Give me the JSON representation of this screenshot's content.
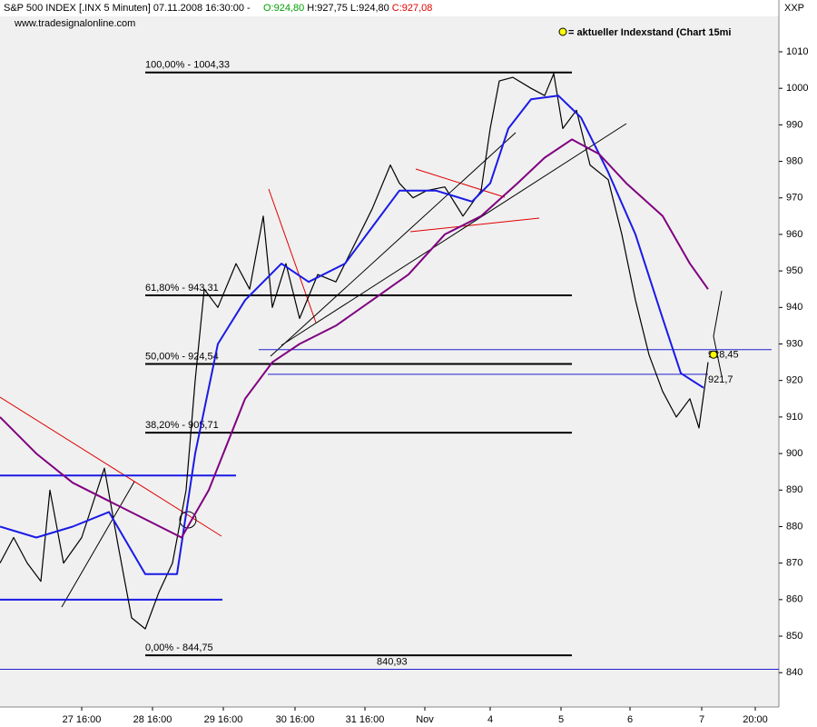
{
  "chart_data": {
    "type": "line",
    "title": "S&P 500 INDEX [.INX  5 Minuten] 07.11.2008 16:30:00 -",
    "ohlc": [
      {
        "label": "O:924,80",
        "color": "#00a000"
      },
      {
        "label": "H:927,75",
        "color": "#000000"
      },
      {
        "label": "L:924,80",
        "color": "#000000"
      },
      {
        "label": "C:927,08",
        "color": "#e00000"
      }
    ],
    "subtitle": "www.tradesignalonline.com",
    "legend_text": "= aktueller Indexstand (Chart 15mi",
    "axis_label": "XXP",
    "xlim": [
      0,
      858
    ],
    "ylim": [
      830.6,
      1019.7
    ],
    "yticks": [
      840,
      850,
      860,
      870,
      880,
      890,
      900,
      910,
      920,
      930,
      940,
      950,
      960,
      970,
      980,
      990,
      1000,
      1010
    ],
    "xticks": [
      {
        "value": 90,
        "label": "27 16:00"
      },
      {
        "value": 168,
        "label": "28 16:00"
      },
      {
        "value": 246,
        "label": "29 16:00"
      },
      {
        "value": 325,
        "label": "30 16:00"
      },
      {
        "value": 402,
        "label": "31 16:00"
      },
      {
        "value": 468,
        "label": "Nov"
      },
      {
        "value": 540,
        "label": "4"
      },
      {
        "value": 618,
        "label": "5"
      },
      {
        "value": 694,
        "label": "6"
      },
      {
        "value": 773,
        "label": "7"
      },
      {
        "value": 832,
        "label": "20:00"
      }
    ],
    "series": [
      {
        "color": "#000000",
        "width": 1.2,
        "x": [
          0,
          15,
          30,
          45,
          55,
          70,
          90,
          115,
          130,
          145,
          160,
          175,
          190,
          205,
          215,
          225,
          240,
          260,
          275,
          290,
          300,
          315,
          330,
          350,
          370,
          390,
          410,
          430,
          440,
          455,
          470,
          490,
          510,
          530,
          540,
          550,
          565,
          585,
          600,
          610,
          620,
          635,
          650,
          670,
          685,
          700,
          715,
          730,
          745,
          760,
          770,
          780
        ],
        "values": [
          870,
          877,
          870,
          865,
          890,
          870,
          877,
          896,
          875,
          855,
          852,
          862,
          870,
          890,
          920,
          945,
          940,
          952,
          945,
          965,
          940,
          952,
          937,
          949,
          947,
          957,
          967,
          979,
          974,
          970,
          972,
          973,
          965,
          972,
          989,
          1002,
          1003,
          1000,
          998,
          1004,
          989,
          994,
          979,
          975,
          960,
          942,
          927,
          917,
          910,
          915,
          907,
          925
        ]
      },
      {
        "color": "#1a1ae6",
        "width": 2,
        "x": [
          0,
          40,
          80,
          120,
          160,
          195,
          215,
          240,
          270,
          310,
          340,
          380,
          410,
          440,
          480,
          520,
          540,
          560,
          585,
          615,
          640,
          670,
          700,
          730,
          750,
          775
        ],
        "values": [
          880,
          877,
          880,
          884,
          867,
          867,
          900,
          930,
          942,
          952,
          947,
          952,
          962,
          972,
          972,
          969,
          974,
          989,
          997,
          998,
          992,
          977,
          960,
          937,
          922,
          918
        ]
      },
      {
        "color": "#800080",
        "width": 2,
        "x": [
          0,
          40,
          80,
          120,
          160,
          200,
          230,
          270,
          300,
          330,
          370,
          410,
          450,
          490,
          530,
          570,
          600,
          630,
          660,
          690,
          730,
          760,
          780
        ],
        "values": [
          910,
          900,
          892,
          887,
          882,
          877,
          890,
          915,
          925,
          930,
          935,
          942,
          949,
          960,
          965,
          974,
          981,
          986,
          982,
          974,
          965,
          952,
          945
        ]
      }
    ],
    "levels": [
      {
        "value": 1004.33,
        "label": "100,00% - 1004,33",
        "x": [
          160,
          630
        ],
        "color": "#000000",
        "width": 2
      },
      {
        "value": 943.31,
        "label": "61,80% - 943,31",
        "x": [
          160,
          630
        ],
        "color": "#000000",
        "width": 2
      },
      {
        "value": 924.54,
        "label": "50,00% - 924,54",
        "x": [
          160,
          630
        ],
        "color": "#000000",
        "width": 2
      },
      {
        "value": 905.71,
        "label": "38,20% - 905,71",
        "x": [
          160,
          630
        ],
        "color": "#000000",
        "width": 2
      },
      {
        "value": 844.75,
        "label": "0,00% - 844,75",
        "x": [
          160,
          630
        ],
        "color": "#000000",
        "width": 2
      },
      {
        "value": 928.45,
        "label": "928,45",
        "x": [
          285,
          850
        ],
        "color": "#2020d0",
        "width": 1
      },
      {
        "value": 921.7,
        "label": "921,7",
        "x": [
          295,
          780
        ],
        "color": "#2020d0",
        "width": 1
      },
      {
        "value": 840.93,
        "label": "840,93",
        "x": [
          0,
          858
        ],
        "color": "#2020d0",
        "width": 1
      },
      {
        "value": 894,
        "x": [
          0,
          260
        ],
        "color": "#1a1ae6",
        "width": 2
      },
      {
        "value": 860,
        "x": [
          0,
          245
        ],
        "color": "#1a1ae6",
        "width": 2
      }
    ],
    "current": {
      "x": 786,
      "value": 927.08,
      "color": "#ffff00"
    }
  }
}
